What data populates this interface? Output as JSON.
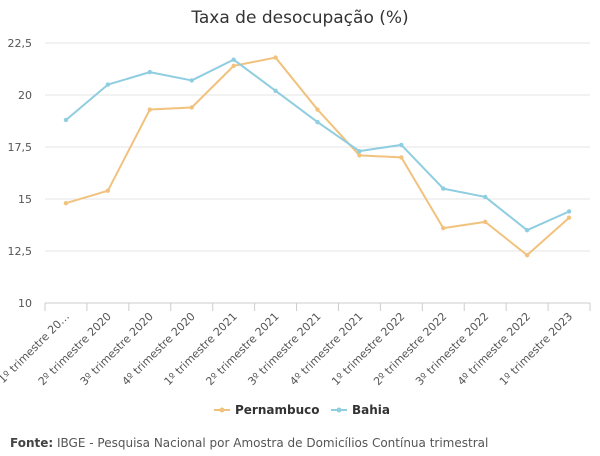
{
  "chart_data": {
    "type": "line",
    "title": "Taxa de desocupação (%)",
    "categories": [
      "1º trimestre 20…",
      "2º trimestre 2020",
      "3º trimestre 2020",
      "4º trimestre 2020",
      "1º trimestre 2021",
      "2º trimestre 2021",
      "3º trimestre 2021",
      "4º trimestre 2021",
      "1º trimestre 2022",
      "2º trimestre 2022",
      "3º trimestre 2022",
      "4º trimestre 2022",
      "1º trimestre 2023"
    ],
    "series": [
      {
        "name": "Pernambuco",
        "color": "#f1c27d",
        "values": [
          14.8,
          15.4,
          19.3,
          19.4,
          21.4,
          21.8,
          19.3,
          17.1,
          17.0,
          13.6,
          13.9,
          12.3,
          14.1
        ]
      },
      {
        "name": "Bahia",
        "color": "#8fcde0",
        "values": [
          18.8,
          20.5,
          21.1,
          20.7,
          21.7,
          20.2,
          18.7,
          17.3,
          17.6,
          15.5,
          15.1,
          13.5,
          14.4
        ]
      }
    ],
    "yticks": [
      "10",
      "12,5",
      "15",
      "17,5",
      "20",
      "22,5"
    ],
    "ylim": [
      10,
      22.5
    ],
    "grid": true,
    "legend": "bottom-center"
  },
  "source": {
    "label": "Fonte:",
    "text": "IBGE - Pesquisa Nacional por Amostra de Domicílios Contínua trimestral"
  }
}
